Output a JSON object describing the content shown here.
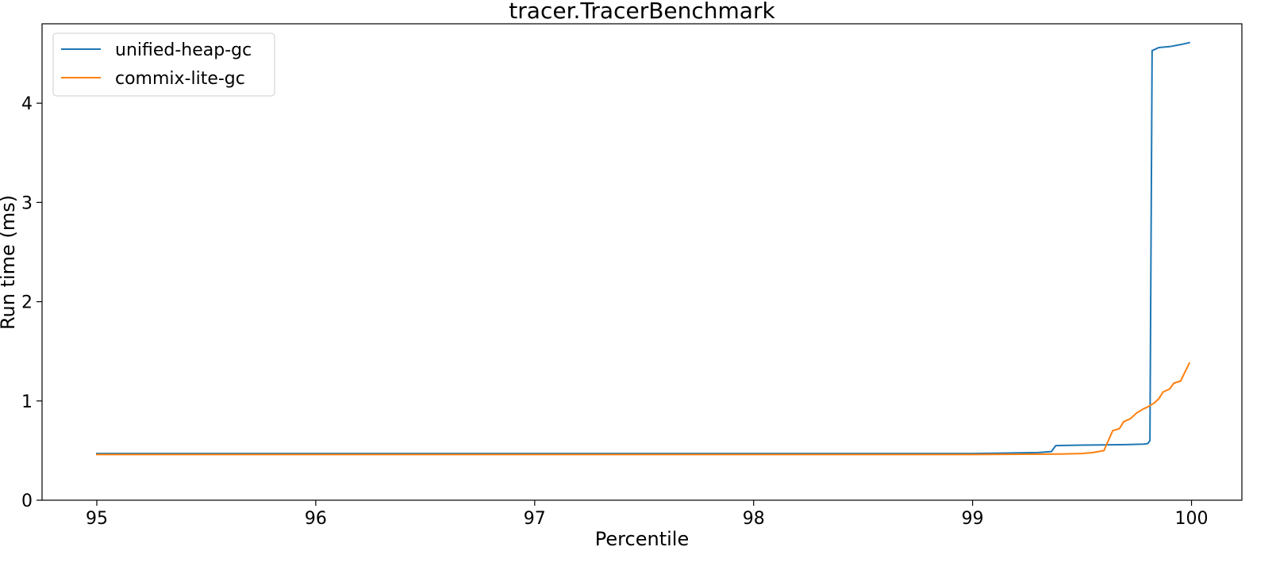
{
  "chart_data": {
    "type": "line",
    "title": "tracer.TracerBenchmark",
    "xlabel": "Percentile",
    "ylabel": "Run time (ms)",
    "xlim": [
      94.75,
      100.23
    ],
    "ylim": [
      0,
      4.8
    ],
    "xticks": [
      95,
      96,
      97,
      98,
      99,
      100
    ],
    "xtick_labels": [
      "95",
      "96",
      "97",
      "98",
      "99",
      "100"
    ],
    "yticks": [
      0,
      1,
      2,
      3,
      4
    ],
    "ytick_labels": [
      "0",
      "1",
      "2",
      "3",
      "4"
    ],
    "grid": false,
    "legend_position": "upper-left",
    "series": [
      {
        "name": "unified-heap-gc",
        "color": "#1f77b4",
        "points": [
          [
            95.0,
            0.47
          ],
          [
            96.0,
            0.47
          ],
          [
            97.0,
            0.47
          ],
          [
            98.0,
            0.47
          ],
          [
            99.0,
            0.47
          ],
          [
            99.3,
            0.48
          ],
          [
            99.36,
            0.49
          ],
          [
            99.38,
            0.55
          ],
          [
            99.5,
            0.555
          ],
          [
            99.6,
            0.557
          ],
          [
            99.7,
            0.56
          ],
          [
            99.78,
            0.565
          ],
          [
            99.8,
            0.57
          ],
          [
            99.81,
            0.6
          ],
          [
            99.82,
            4.53
          ],
          [
            99.85,
            4.56
          ],
          [
            99.9,
            4.57
          ],
          [
            99.95,
            4.59
          ],
          [
            99.99,
            4.61
          ]
        ]
      },
      {
        "name": "commix-lite-gc",
        "color": "#ff7f0e",
        "points": [
          [
            95.0,
            0.46
          ],
          [
            96.0,
            0.46
          ],
          [
            97.0,
            0.46
          ],
          [
            98.0,
            0.46
          ],
          [
            99.0,
            0.46
          ],
          [
            99.4,
            0.465
          ],
          [
            99.5,
            0.47
          ],
          [
            99.55,
            0.48
          ],
          [
            99.6,
            0.5
          ],
          [
            99.62,
            0.6
          ],
          [
            99.64,
            0.7
          ],
          [
            99.67,
            0.72
          ],
          [
            99.69,
            0.79
          ],
          [
            99.72,
            0.82
          ],
          [
            99.75,
            0.88
          ],
          [
            99.78,
            0.92
          ],
          [
            99.8,
            0.94
          ],
          [
            99.83,
            0.98
          ],
          [
            99.85,
            1.02
          ],
          [
            99.87,
            1.09
          ],
          [
            99.9,
            1.12
          ],
          [
            99.92,
            1.18
          ],
          [
            99.95,
            1.2
          ],
          [
            99.97,
            1.29
          ],
          [
            99.99,
            1.38
          ]
        ]
      }
    ]
  }
}
